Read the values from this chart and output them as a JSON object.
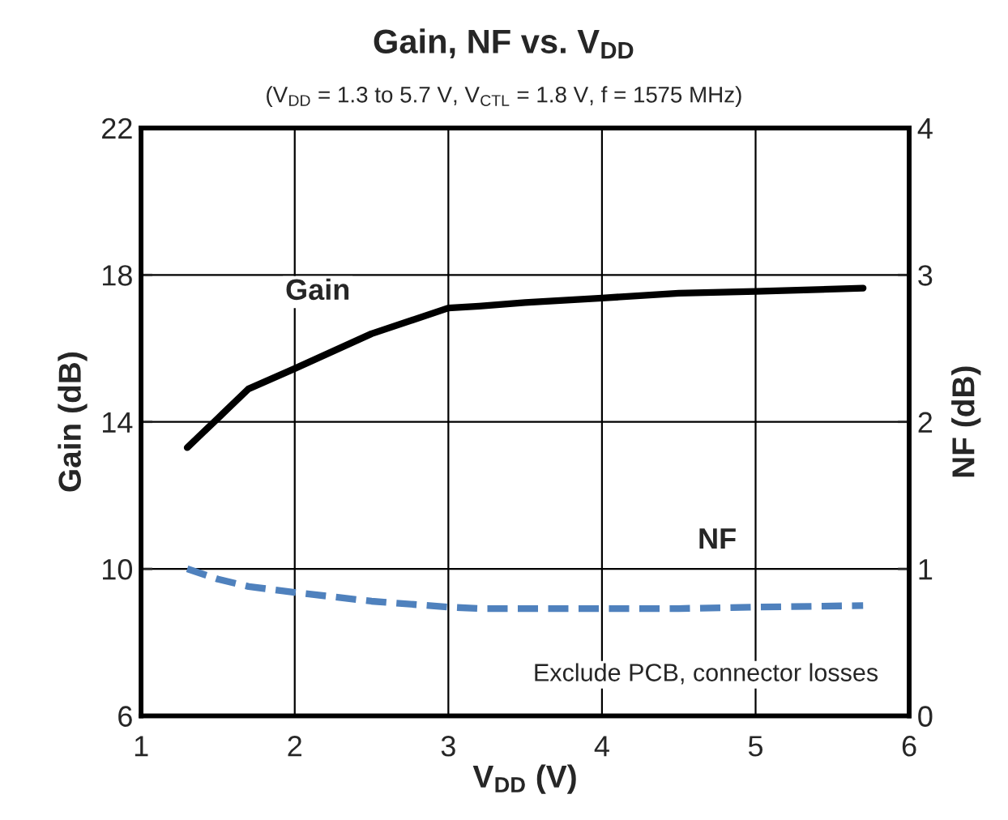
{
  "chart_data": {
    "type": "line",
    "title": "Gain, NF vs. V$_{DD}$",
    "subtitle": "(V$_{DD}$ = 1.3 to 5.7 V, V$_{CTL}$ = 1.8 V, f = 1575 MHz)",
    "xlabel": "V$_{DD}$ (V)",
    "ylabel": "Gain (dB)",
    "y2label": "NF (dB)",
    "x": [
      1.3,
      1.5,
      1.7,
      2,
      2.5,
      3,
      3.2,
      3.5,
      4,
      4.5,
      5,
      5.7
    ],
    "series": [
      {
        "name": "Gain",
        "color": "#000000",
        "line_style": "solid",
        "values": [
          13.3,
          14.1,
          14.9,
          15.45,
          16.4,
          17.1,
          17.15,
          17.25,
          17.37,
          17.5,
          17.55,
          17.64
        ]
      },
      {
        "name": "NF",
        "color": "#4f81bd",
        "line_style": "dashed",
        "axis": "y2",
        "values": [
          1.0,
          0.93,
          0.88,
          0.84,
          0.78,
          0.74,
          0.73,
          0.73,
          0.73,
          0.73,
          0.74,
          0.75
        ]
      }
    ],
    "xlim": [
      1,
      6
    ],
    "xticks": [
      1,
      2,
      3,
      4,
      5,
      6
    ],
    "ylim": [
      6,
      22
    ],
    "yticks": [
      6,
      10,
      14,
      18,
      22
    ],
    "y2lim": [
      0,
      4
    ],
    "y2ticks": [
      0,
      1,
      2,
      3,
      4
    ],
    "grid": true,
    "annotations": [
      "Exclude PCB, connector losses"
    ]
  }
}
